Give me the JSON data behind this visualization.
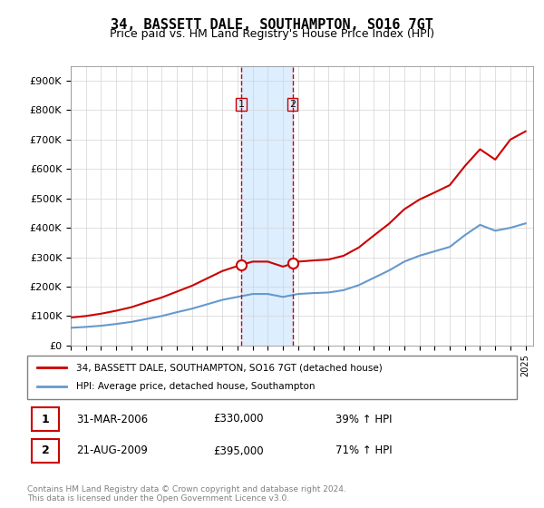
{
  "title": "34, BASSETT DALE, SOUTHAMPTON, SO16 7GT",
  "subtitle": "Price paid vs. HM Land Registry's House Price Index (HPI)",
  "legend_line1": "34, BASSETT DALE, SOUTHAMPTON, SO16 7GT (detached house)",
  "legend_line2": "HPI: Average price, detached house, Southampton",
  "footnote": "Contains HM Land Registry data © Crown copyright and database right 2024.\nThis data is licensed under the Open Government Licence v3.0.",
  "transactions": [
    {
      "label": "1",
      "date": "31-MAR-2006",
      "price": "£330,000",
      "hpi_change": "39% ↑ HPI",
      "year": 2006.25
    },
    {
      "label": "2",
      "date": "21-AUG-2009",
      "price": "£395,000",
      "hpi_change": "71% ↑ HPI",
      "year": 2009.63
    }
  ],
  "property_color": "#cc0000",
  "hpi_color": "#6699cc",
  "shading_color": "#ddeeff",
  "ylim": [
    0,
    950000
  ],
  "yticks": [
    0,
    100000,
    200000,
    300000,
    400000,
    500000,
    600000,
    700000,
    800000,
    900000
  ],
  "ytick_labels": [
    "£0",
    "£100K",
    "£200K",
    "£300K",
    "£400K",
    "£500K",
    "£600K",
    "£700K",
    "£800K",
    "£900K"
  ],
  "hpi_years": [
    1995,
    1996,
    1997,
    1998,
    1999,
    2000,
    2001,
    2002,
    2003,
    2004,
    2005,
    2006,
    2007,
    2008,
    2009,
    2010,
    2011,
    2012,
    2013,
    2014,
    2015,
    2016,
    2017,
    2018,
    2019,
    2020,
    2021,
    2022,
    2023,
    2024,
    2025
  ],
  "hpi_values": [
    60000,
    63000,
    67000,
    73000,
    80000,
    90000,
    100000,
    113000,
    125000,
    140000,
    155000,
    165000,
    175000,
    175000,
    165000,
    175000,
    178000,
    180000,
    188000,
    205000,
    230000,
    255000,
    285000,
    305000,
    320000,
    335000,
    375000,
    410000,
    390000,
    400000,
    415000
  ],
  "prop_years": [
    1995,
    1996,
    1997,
    1998,
    1999,
    2000,
    2001,
    2002,
    2003,
    2004,
    2005,
    2006,
    2007,
    2008,
    2009,
    2010,
    2011,
    2012,
    2013,
    2014,
    2015,
    2016,
    2017,
    2018,
    2019,
    2020,
    2021,
    2022,
    2023,
    2024,
    2025
  ],
  "prop_values": [
    95000,
    100000,
    108000,
    118000,
    130000,
    147000,
    163000,
    183000,
    203000,
    228000,
    253000,
    270000,
    285000,
    285000,
    268000,
    285000,
    289000,
    292000,
    305000,
    333000,
    374000,
    414000,
    463000,
    496000,
    520000,
    545000,
    610000,
    667000,
    632000,
    700000,
    728000
  ]
}
